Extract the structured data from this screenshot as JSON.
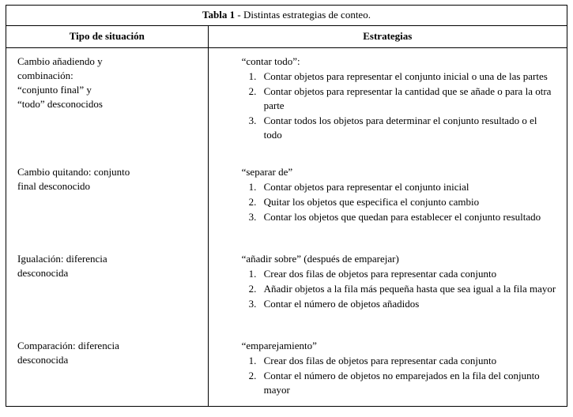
{
  "caption": {
    "label_bold": "Tabla 1",
    "label_rest": " - Distintas estrategias de conteo."
  },
  "headers": {
    "left": "Tipo de situación",
    "right": "Estrategias"
  },
  "rows": [
    {
      "situation_lines": [
        "Cambio añadiendo y",
        "combinación:",
        "“conjunto final” y",
        "“todo” desconocidos"
      ],
      "strategy_name": "“contar todo”:",
      "steps": [
        "Contar objetos para representar el conjunto inicial o una de las partes",
        "Contar objetos para representar la cantidad que se añade o para la otra parte",
        "Contar todos los objetos para determinar el conjunto resultado o el todo"
      ]
    },
    {
      "situation_lines": [
        "Cambio quitando: conjunto",
        "final desconocido"
      ],
      "strategy_name": "“separar de”",
      "steps": [
        "Contar objetos para representar el conjunto inicial",
        "Quitar los objetos que especifica el conjunto cambio",
        "Contar los objetos que quedan para establecer el conjunto resultado"
      ]
    },
    {
      "situation_lines": [
        "Igualación: diferencia",
        "desconocida"
      ],
      "strategy_name": "“añadir sobre” (después de emparejar)",
      "steps": [
        "Crear dos filas de objetos para representar cada conjunto",
        "Añadir objetos a la fila más pequeña hasta que sea igual a la fila mayor",
        "Contar el número de objetos añadidos"
      ]
    },
    {
      "situation_lines": [
        "Comparación: diferencia",
        "desconocida"
      ],
      "strategy_name": "“emparejamiento”",
      "steps": [
        "Crear dos filas de objetos para representar cada conjunto",
        "Contar el número de objetos no emparejados en la fila del conjunto mayor"
      ]
    }
  ]
}
